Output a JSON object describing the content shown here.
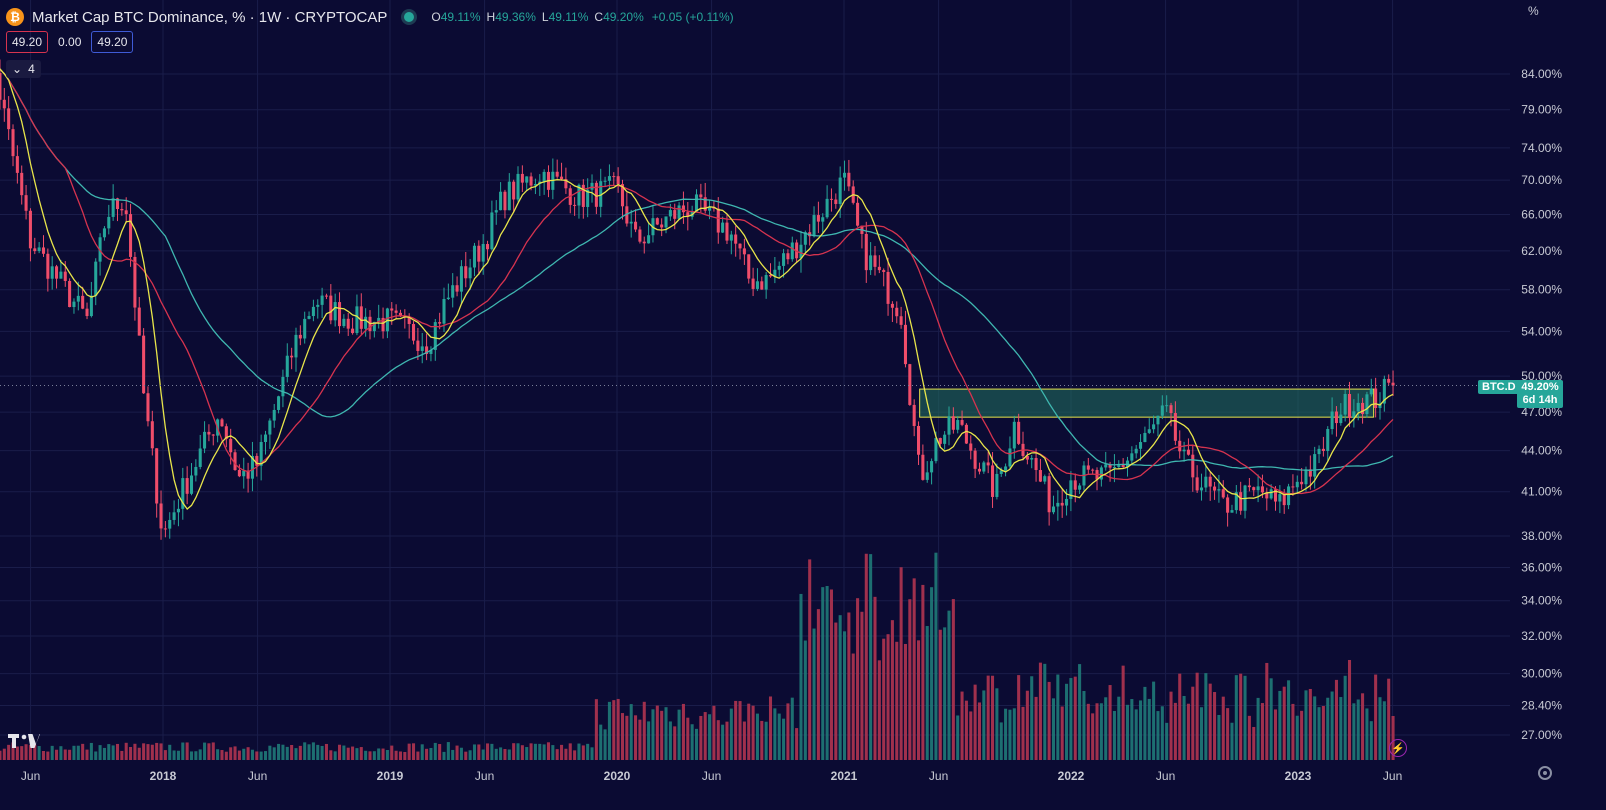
{
  "header": {
    "coin_icon": "bitcoin-icon",
    "coin_glyph": "₿",
    "title": "Market Cap BTC Dominance, % · 1W · CRYPTOCAP",
    "ohlc": [
      {
        "label": "O",
        "value": "49.11%"
      },
      {
        "label": "H",
        "value": "49.36%"
      },
      {
        "label": "L",
        "value": "49.11%"
      },
      {
        "label": "C",
        "value": "49.20%"
      }
    ],
    "change": "+0.05 (+0.11%)",
    "indicator_values": {
      "red": "49.20",
      "zero": "0.00",
      "blue": "49.20"
    },
    "collapse_glyph": "⌄",
    "collapse_count": "4"
  },
  "axis_unit": "%",
  "price_label": {
    "symbol": "BTC.D",
    "value": "49.20%",
    "countdown": "6d 14h"
  },
  "colors": {
    "background": "#0b0b33",
    "up": "#26a69a",
    "down": "#ef4d6a",
    "ma_yellow": "#e8e54a",
    "ma_red": "#d6334f",
    "ma_teal": "#3fb7b0",
    "zone_fill": "#1f6b5c",
    "zone_border": "#e8e54a"
  },
  "icons": {
    "logo": "tradingview-logo",
    "alert": "lightning-icon",
    "settings": "gear-icon"
  },
  "chart_data": {
    "type": "candlestick",
    "title": "Market Cap BTC Dominance, %",
    "scale": "log",
    "ylim": [
      26.0,
      93.0
    ],
    "y_ticks": [
      "84.00%",
      "79.00%",
      "74.00%",
      "70.00%",
      "66.00%",
      "62.00%",
      "58.00%",
      "54.00%",
      "50.00%",
      "47.00%",
      "44.00%",
      "41.00%",
      "38.00%",
      "36.00%",
      "34.00%",
      "32.00%",
      "30.00%",
      "28.40%",
      "27.00%"
    ],
    "x_ticks": [
      "Jun",
      "2018",
      "Jun",
      "2019",
      "Jun",
      "2020",
      "Jun",
      "2021",
      "Jun",
      "2022",
      "Jun",
      "2023",
      "Jun"
    ],
    "key_points": [
      {
        "date": "2017-04",
        "dominance": 86
      },
      {
        "date": "2017-06",
        "dominance": 63
      },
      {
        "date": "2017-09",
        "dominance": 55
      },
      {
        "date": "2017-10",
        "dominance": 66
      },
      {
        "date": "2017-11",
        "dominance": 68
      },
      {
        "date": "2017-12",
        "dominance": 48
      },
      {
        "date": "2018-01",
        "dominance": 38
      },
      {
        "date": "2018-02",
        "dominance": 41
      },
      {
        "date": "2018-04",
        "dominance": 47
      },
      {
        "date": "2018-05",
        "dominance": 42
      },
      {
        "date": "2018-06",
        "dominance": 43
      },
      {
        "date": "2018-08",
        "dominance": 53
      },
      {
        "date": "2018-09",
        "dominance": 57
      },
      {
        "date": "2018-11",
        "dominance": 55
      },
      {
        "date": "2019-01",
        "dominance": 55
      },
      {
        "date": "2019-03",
        "dominance": 53
      },
      {
        "date": "2019-04",
        "dominance": 57
      },
      {
        "date": "2019-06",
        "dominance": 63
      },
      {
        "date": "2019-07",
        "dominance": 68
      },
      {
        "date": "2019-09",
        "dominance": 71
      },
      {
        "date": "2019-11",
        "dominance": 68
      },
      {
        "date": "2020-01",
        "dominance": 69
      },
      {
        "date": "2020-02",
        "dominance": 63
      },
      {
        "date": "2020-04",
        "dominance": 66
      },
      {
        "date": "2020-05",
        "dominance": 67
      },
      {
        "date": "2020-07",
        "dominance": 64
      },
      {
        "date": "2020-08",
        "dominance": 59
      },
      {
        "date": "2020-09",
        "dominance": 59
      },
      {
        "date": "2020-11",
        "dominance": 64
      },
      {
        "date": "2021-01",
        "dominance": 70
      },
      {
        "date": "2021-02",
        "dominance": 62
      },
      {
        "date": "2021-04",
        "dominance": 56
      },
      {
        "date": "2021-05",
        "dominance": 42
      },
      {
        "date": "2021-06",
        "dominance": 45
      },
      {
        "date": "2021-07",
        "dominance": 46
      },
      {
        "date": "2021-09",
        "dominance": 41
      },
      {
        "date": "2021-10",
        "dominance": 46
      },
      {
        "date": "2021-12",
        "dominance": 40
      },
      {
        "date": "2022-01",
        "dominance": 42
      },
      {
        "date": "2022-03",
        "dominance": 42
      },
      {
        "date": "2022-05",
        "dominance": 45
      },
      {
        "date": "2022-06",
        "dominance": 47
      },
      {
        "date": "2022-07",
        "dominance": 43
      },
      {
        "date": "2022-09",
        "dominance": 40
      },
      {
        "date": "2022-11",
        "dominance": 41
      },
      {
        "date": "2022-12",
        "dominance": 40
      },
      {
        "date": "2023-01",
        "dominance": 42
      },
      {
        "date": "2023-02",
        "dominance": 43
      },
      {
        "date": "2023-03",
        "dominance": 47
      },
      {
        "date": "2023-04",
        "dominance": 48
      },
      {
        "date": "2023-05",
        "dominance": 48
      },
      {
        "date": "2023-06",
        "dominance": 49.2
      }
    ],
    "zone": {
      "from": "2021-05",
      "to": "2023-05",
      "low": 46.6,
      "high": 48.9
    },
    "current": 49.2
  }
}
